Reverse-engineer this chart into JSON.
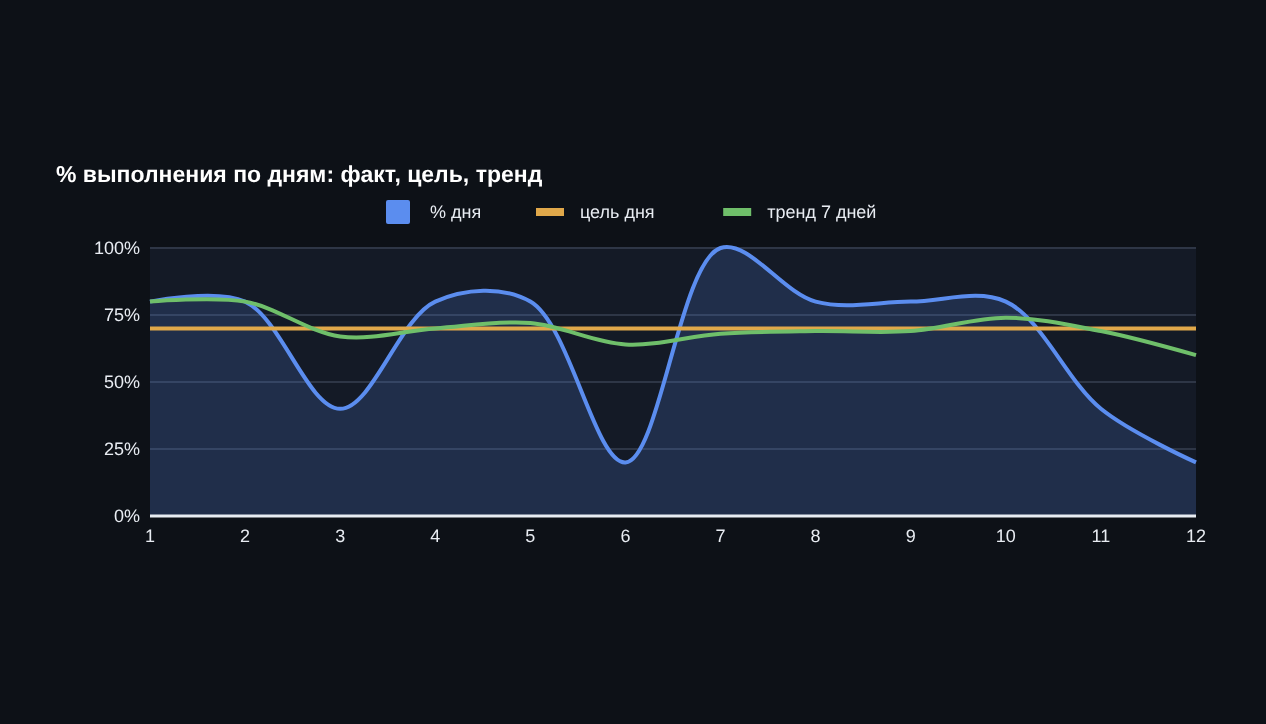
{
  "chart_data": {
    "type": "line",
    "title": "% выполнения по дням: факт, цель, тренд",
    "x": [
      1,
      2,
      3,
      4,
      5,
      6,
      7,
      8,
      9,
      10,
      11,
      12
    ],
    "xlim": [
      1,
      12
    ],
    "xticks": [
      1,
      2,
      3,
      4,
      5,
      6,
      7,
      8,
      9,
      10,
      11,
      12
    ],
    "ylim": [
      0,
      100
    ],
    "yticks": [
      {
        "value": 0,
        "label": "0%"
      },
      {
        "value": 25,
        "label": "25%"
      },
      {
        "value": 50,
        "label": "50%"
      },
      {
        "value": 75,
        "label": "75%"
      },
      {
        "value": 100,
        "label": "100%"
      }
    ],
    "grid": "y",
    "legend": "top",
    "marker": "none",
    "series": [
      {
        "name": "% дня",
        "type": "area",
        "color": "#5b8def",
        "values": [
          80,
          80,
          40,
          80,
          80,
          20,
          100,
          80,
          80,
          80,
          40,
          20
        ]
      },
      {
        "name": "цель дня",
        "color": "#e0a84a",
        "values": [
          70,
          70,
          70,
          70,
          70,
          70,
          70,
          70,
          70,
          70,
          70,
          70
        ]
      },
      {
        "name": "тренд 7 дней",
        "color": "#6fbf6a",
        "values": [
          80,
          80,
          67,
          70,
          72,
          64,
          68,
          69,
          69,
          74,
          69,
          60
        ]
      }
    ]
  }
}
